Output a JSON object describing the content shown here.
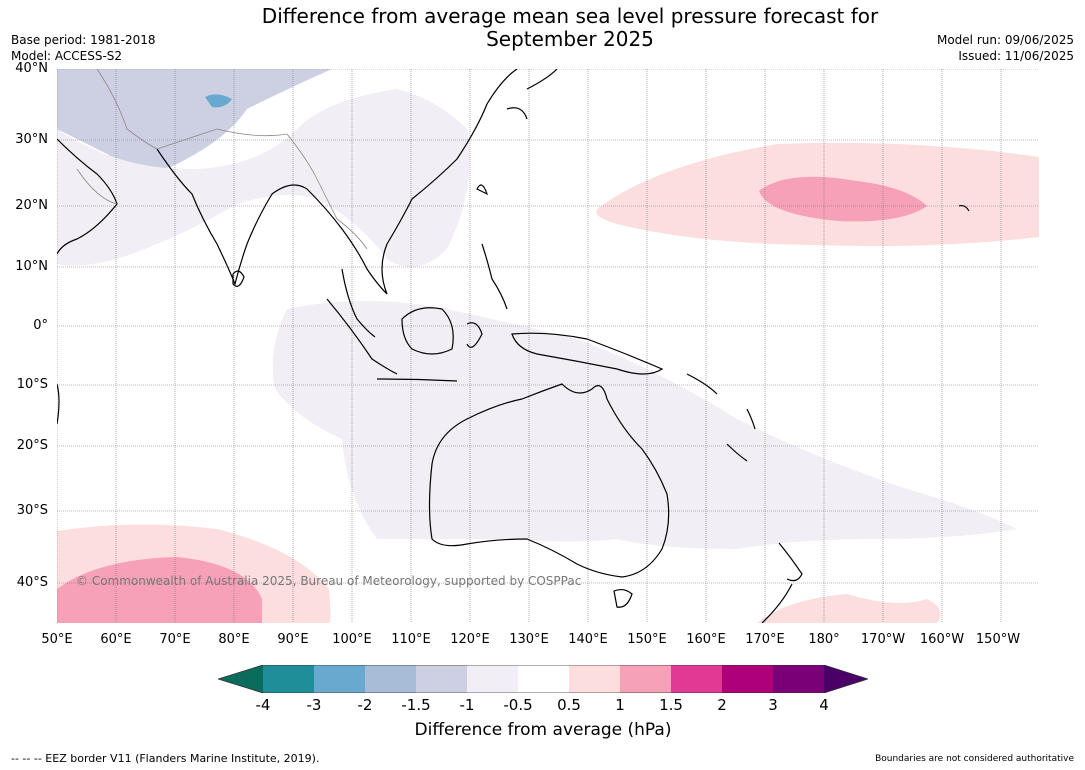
{
  "header": {
    "title_line1": "Difference from average mean sea level pressure forecast for",
    "title_line2": "September 2025",
    "base_period": "Base period: 1981-2018",
    "model": "Model: ACCESS-S2",
    "model_run": "Model run: 09/06/2025",
    "issued": "Issued: 11/06/2025"
  },
  "map": {
    "lat_labels": [
      "40°N",
      "30°N",
      "20°N",
      "10°N",
      "0°",
      "10°S",
      "20°S",
      "30°S",
      "40°S"
    ],
    "lon_labels": [
      "50°E",
      "60°E",
      "70°E",
      "80°E",
      "90°E",
      "100°E",
      "110°E",
      "120°E",
      "130°E",
      "140°E",
      "150°E",
      "160°E",
      "170°E",
      "180°",
      "170°W",
      "160°W",
      "150°W"
    ],
    "copyright": "© Commonwealth of Australia 2025, Bureau of Meteorology, supported by COSPPac",
    "colors": {
      "land_outline": "#000000",
      "border": "#888888",
      "grid": "#777777"
    }
  },
  "colorbar": {
    "label": "Difference from average (hPa)",
    "ticks": [
      "-4",
      "-3",
      "-2",
      "-1.5",
      "-1",
      "-0.5",
      "0.5",
      "1",
      "1.5",
      "2",
      "3",
      "4"
    ],
    "colors": [
      "#0b6b5c",
      "#1f8e98",
      "#6aa9cf",
      "#a8bcd8",
      "#cdd0e3",
      "#f2eef5",
      "#ffffff",
      "#fddede",
      "#f7a1b8",
      "#e03a95",
      "#ad0079",
      "#7a0077",
      "#4b0068"
    ]
  },
  "footer": {
    "eez_note": "--  --  -- EEZ border V11 (Flanders Marine Institute, 2019).",
    "boundaries_note": "Boundaries are not considered authoritative"
  }
}
